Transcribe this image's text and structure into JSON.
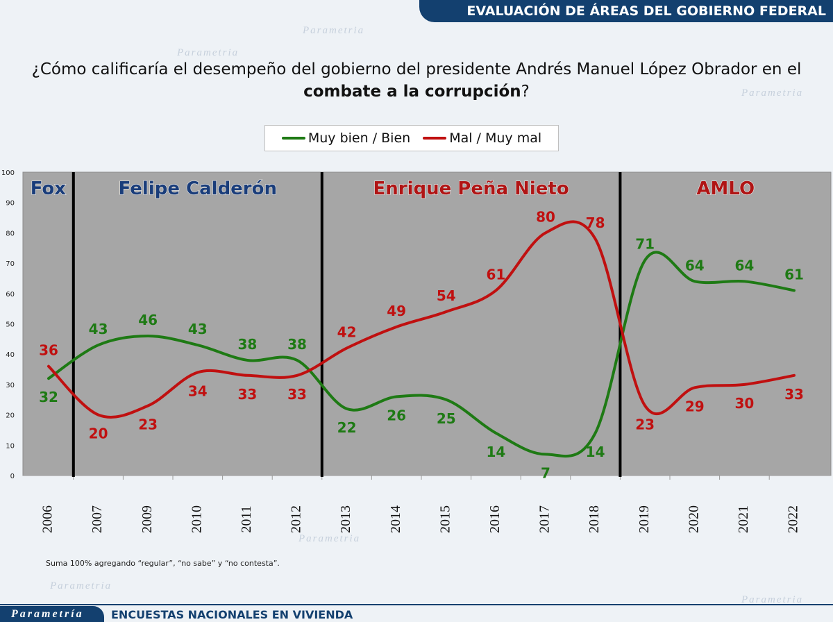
{
  "header": {
    "banner": "EVALUACIÓN DE ÁREAS DEL GOBIERNO FEDERAL"
  },
  "question": {
    "line1": "¿Cómo calificaría el desempeño del gobierno del presidente Andrés Manuel López Obrador en el",
    "bold": "combate a la corrupción",
    "suffix": "?"
  },
  "watermark": "Parametria",
  "chart_data": {
    "type": "line",
    "categories": [
      "2006",
      "2007",
      "2009",
      "2010",
      "2011",
      "2012",
      "2013",
      "2014",
      "2015",
      "2016",
      "2017",
      "2018",
      "2019",
      "2020",
      "2021",
      "2022"
    ],
    "series": [
      {
        "name": "Muy bien / Bien",
        "color": "#1e7a14",
        "values": [
          32,
          43,
          46,
          43,
          38,
          38,
          22,
          26,
          25,
          14,
          7,
          14,
          71,
          64,
          64,
          61
        ]
      },
      {
        "name": "Mal / Muy mal",
        "color": "#c01010",
        "values": [
          36,
          20,
          23,
          34,
          33,
          33,
          42,
          49,
          54,
          61,
          80,
          78,
          23,
          29,
          30,
          33
        ]
      }
    ],
    "ylim": [
      0,
      100
    ],
    "yticks": [
      0,
      10,
      20,
      30,
      40,
      50,
      60,
      70,
      80,
      90,
      100
    ],
    "periods": [
      {
        "label": "Fox",
        "from": 0,
        "to": 0,
        "color": "#1a3d7a"
      },
      {
        "label": "Felipe Calderón",
        "from": 1,
        "to": 5,
        "color": "#1a3d7a"
      },
      {
        "label": "Enrique Peña Nieto",
        "from": 6,
        "to": 11,
        "color": "#b01515"
      },
      {
        "label": "AMLO",
        "from": 12,
        "to": 15,
        "color": "#b01515"
      }
    ],
    "legend_position": "top-center",
    "grid": false
  },
  "footnote": "Suma 100%  agregando “regular”, “no sabe” y “no contesta”.",
  "footer": {
    "brand": "Parametría",
    "text": "ENCUESTAS NACIONALES EN VIVIENDA"
  }
}
